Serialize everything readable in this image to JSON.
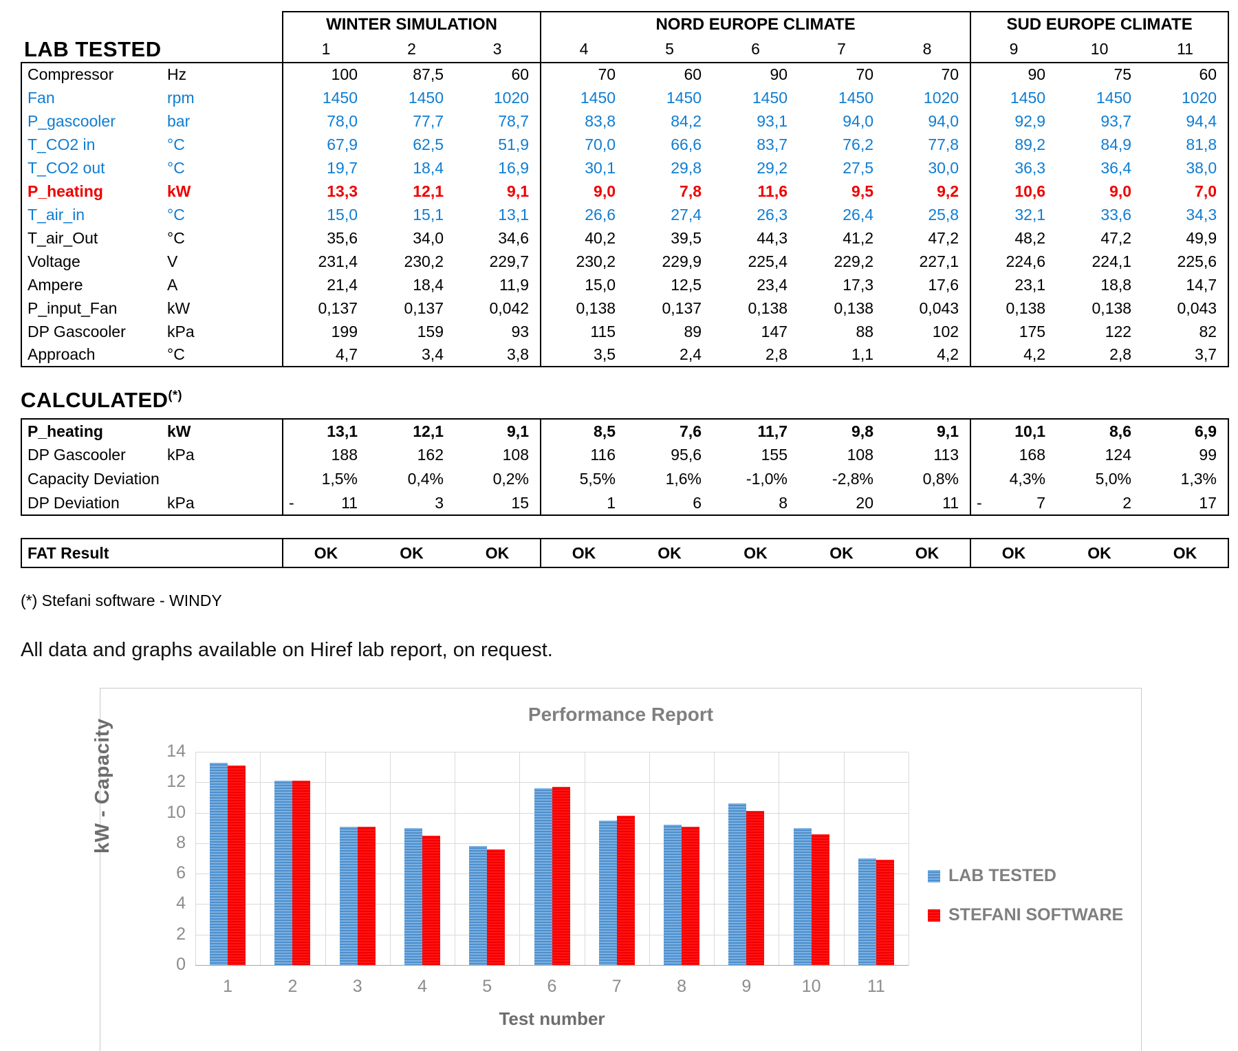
{
  "lab_table": {
    "title": "LAB TESTED",
    "groups": [
      {
        "label": "WINTER SIMULATION",
        "span": 3
      },
      {
        "label": "NORD EUROPE CLIMATE",
        "span": 5
      },
      {
        "label": "SUD EUROPE CLIMATE",
        "span": 3
      }
    ],
    "col_numbers": [
      "1",
      "2",
      "3",
      "4",
      "5",
      "6",
      "7",
      "8",
      "9",
      "10",
      "11"
    ],
    "rows": [
      {
        "label": "Compressor",
        "unit": "Hz",
        "color": "black",
        "values": [
          "100",
          "87,5",
          "60",
          "70",
          "60",
          "90",
          "70",
          "70",
          "90",
          "75",
          "60"
        ]
      },
      {
        "label": "Fan",
        "unit": "rpm",
        "color": "blue",
        "values": [
          "1450",
          "1450",
          "1020",
          "1450",
          "1450",
          "1450",
          "1450",
          "1020",
          "1450",
          "1450",
          "1020"
        ]
      },
      {
        "label": "P_gascooler",
        "unit": "bar",
        "color": "blue",
        "values": [
          "78,0",
          "77,7",
          "78,7",
          "83,8",
          "84,2",
          "93,1",
          "94,0",
          "94,0",
          "92,9",
          "93,7",
          "94,4"
        ]
      },
      {
        "label": "T_CO2 in",
        "unit": "°C",
        "color": "blue",
        "values": [
          "67,9",
          "62,5",
          "51,9",
          "70,0",
          "66,6",
          "83,7",
          "76,2",
          "77,8",
          "89,2",
          "84,9",
          "81,8"
        ]
      },
      {
        "label": "T_CO2 out",
        "unit": "°C",
        "color": "blue",
        "values": [
          "19,7",
          "18,4",
          "16,9",
          "30,1",
          "29,8",
          "29,2",
          "27,5",
          "30,0",
          "36,3",
          "36,4",
          "38,0"
        ]
      },
      {
        "label": "P_heating",
        "unit": "kW",
        "color": "red",
        "bold": true,
        "values": [
          "13,3",
          "12,1",
          "9,1",
          "9,0",
          "7,8",
          "11,6",
          "9,5",
          "9,2",
          "10,6",
          "9,0",
          "7,0"
        ]
      },
      {
        "label": "T_air_in",
        "unit": "°C",
        "color": "blue",
        "values": [
          "15,0",
          "15,1",
          "13,1",
          "26,6",
          "27,4",
          "26,3",
          "26,4",
          "25,8",
          "32,1",
          "33,6",
          "34,3"
        ]
      },
      {
        "label": "T_air_Out",
        "unit": "°C",
        "color": "black",
        "values": [
          "35,6",
          "34,0",
          "34,6",
          "40,2",
          "39,5",
          "44,3",
          "41,2",
          "47,2",
          "48,2",
          "47,2",
          "49,9"
        ]
      },
      {
        "label": "Voltage",
        "unit": "V",
        "color": "black",
        "values": [
          "231,4",
          "230,2",
          "229,7",
          "230,2",
          "229,9",
          "225,4",
          "229,2",
          "227,1",
          "224,6",
          "224,1",
          "225,6"
        ]
      },
      {
        "label": "Ampere",
        "unit": "A",
        "color": "black",
        "values": [
          "21,4",
          "18,4",
          "11,9",
          "15,0",
          "12,5",
          "23,4",
          "17,3",
          "17,6",
          "23,1",
          "18,8",
          "14,7"
        ]
      },
      {
        "label": "P_input_Fan",
        "unit": "kW",
        "color": "black",
        "values": [
          "0,137",
          "0,137",
          "0,042",
          "0,138",
          "0,137",
          "0,138",
          "0,138",
          "0,043",
          "0,138",
          "0,138",
          "0,043"
        ]
      },
      {
        "label": "DP Gascooler",
        "unit": "kPa",
        "color": "black",
        "values": [
          "199",
          "159",
          "93",
          "115",
          "89",
          "147",
          "88",
          "102",
          "175",
          "122",
          "82"
        ]
      },
      {
        "label": "Approach",
        "unit": "°C",
        "color": "black",
        "values": [
          "4,7",
          "3,4",
          "3,8",
          "3,5",
          "2,4",
          "2,8",
          "1,1",
          "4,2",
          "4,2",
          "2,8",
          "3,7"
        ]
      }
    ]
  },
  "calculated_table": {
    "title": "CALCULATED",
    "sup": "(*)",
    "rows": [
      {
        "label": "P_heating",
        "unit": "kW",
        "color": "black",
        "bold": true,
        "values": [
          "13,1",
          "12,1",
          "9,1",
          "8,5",
          "7,6",
          "11,7",
          "9,8",
          "9,1",
          "10,1",
          "8,6",
          "6,9"
        ]
      },
      {
        "label": "DP Gascooler",
        "unit": "kPa",
        "color": "black",
        "values": [
          "188",
          "162",
          "108",
          "116",
          "95,6",
          "155",
          "108",
          "113",
          "168",
          "124",
          "99"
        ]
      },
      {
        "label": "Capacity Deviation",
        "unit": "",
        "color": "black",
        "values": [
          "1,5%",
          "0,4%",
          "0,2%",
          "5,5%",
          "1,6%",
          "-1,0%",
          "-2,8%",
          "0,8%",
          "4,3%",
          "5,0%",
          "1,3%"
        ]
      },
      {
        "label": "DP Deviation",
        "unit": "kPa",
        "color": "black",
        "values": [
          "11",
          "3",
          "15",
          "1",
          "6",
          "8",
          "20",
          "11",
          "7",
          "2",
          "17"
        ],
        "neg": [
          0,
          8
        ],
        "neg_prefix": "-"
      }
    ]
  },
  "fat_row": {
    "label": "FAT Result",
    "values": [
      "OK",
      "OK",
      "OK",
      "OK",
      "OK",
      "OK",
      "OK",
      "OK",
      "OK",
      "OK",
      "OK"
    ]
  },
  "footnote": "(*) Stefani software - WINDY",
  "note": "All data and graphs available on Hiref lab report, on request.",
  "chart_data": {
    "type": "bar",
    "title": "Performance Report",
    "xlabel": "Test number",
    "ylabel": "kW - Capacity",
    "categories": [
      "1",
      "2",
      "3",
      "4",
      "5",
      "6",
      "7",
      "8",
      "9",
      "10",
      "11"
    ],
    "series": [
      {
        "name": "LAB TESTED",
        "color": "#5b9bd5",
        "values": [
          13.3,
          12.1,
          9.1,
          9.0,
          7.8,
          11.6,
          9.5,
          9.2,
          10.6,
          9.0,
          7.0
        ]
      },
      {
        "name": "STEFANI SOFTWARE",
        "color": "#ff0000",
        "values": [
          13.1,
          12.1,
          9.1,
          8.5,
          7.6,
          11.7,
          9.8,
          9.1,
          10.1,
          8.6,
          6.9
        ]
      }
    ],
    "ylim": [
      0,
      14
    ],
    "ytick_step": 2,
    "grid": true,
    "legend_position": "right"
  },
  "colors": {
    "table_blue": "#0f7dd2",
    "table_red": "#ee0000",
    "bar_blue": "#5b9bd5",
    "bar_red": "#ff0000",
    "chart_gray": "#7f7f7f"
  }
}
